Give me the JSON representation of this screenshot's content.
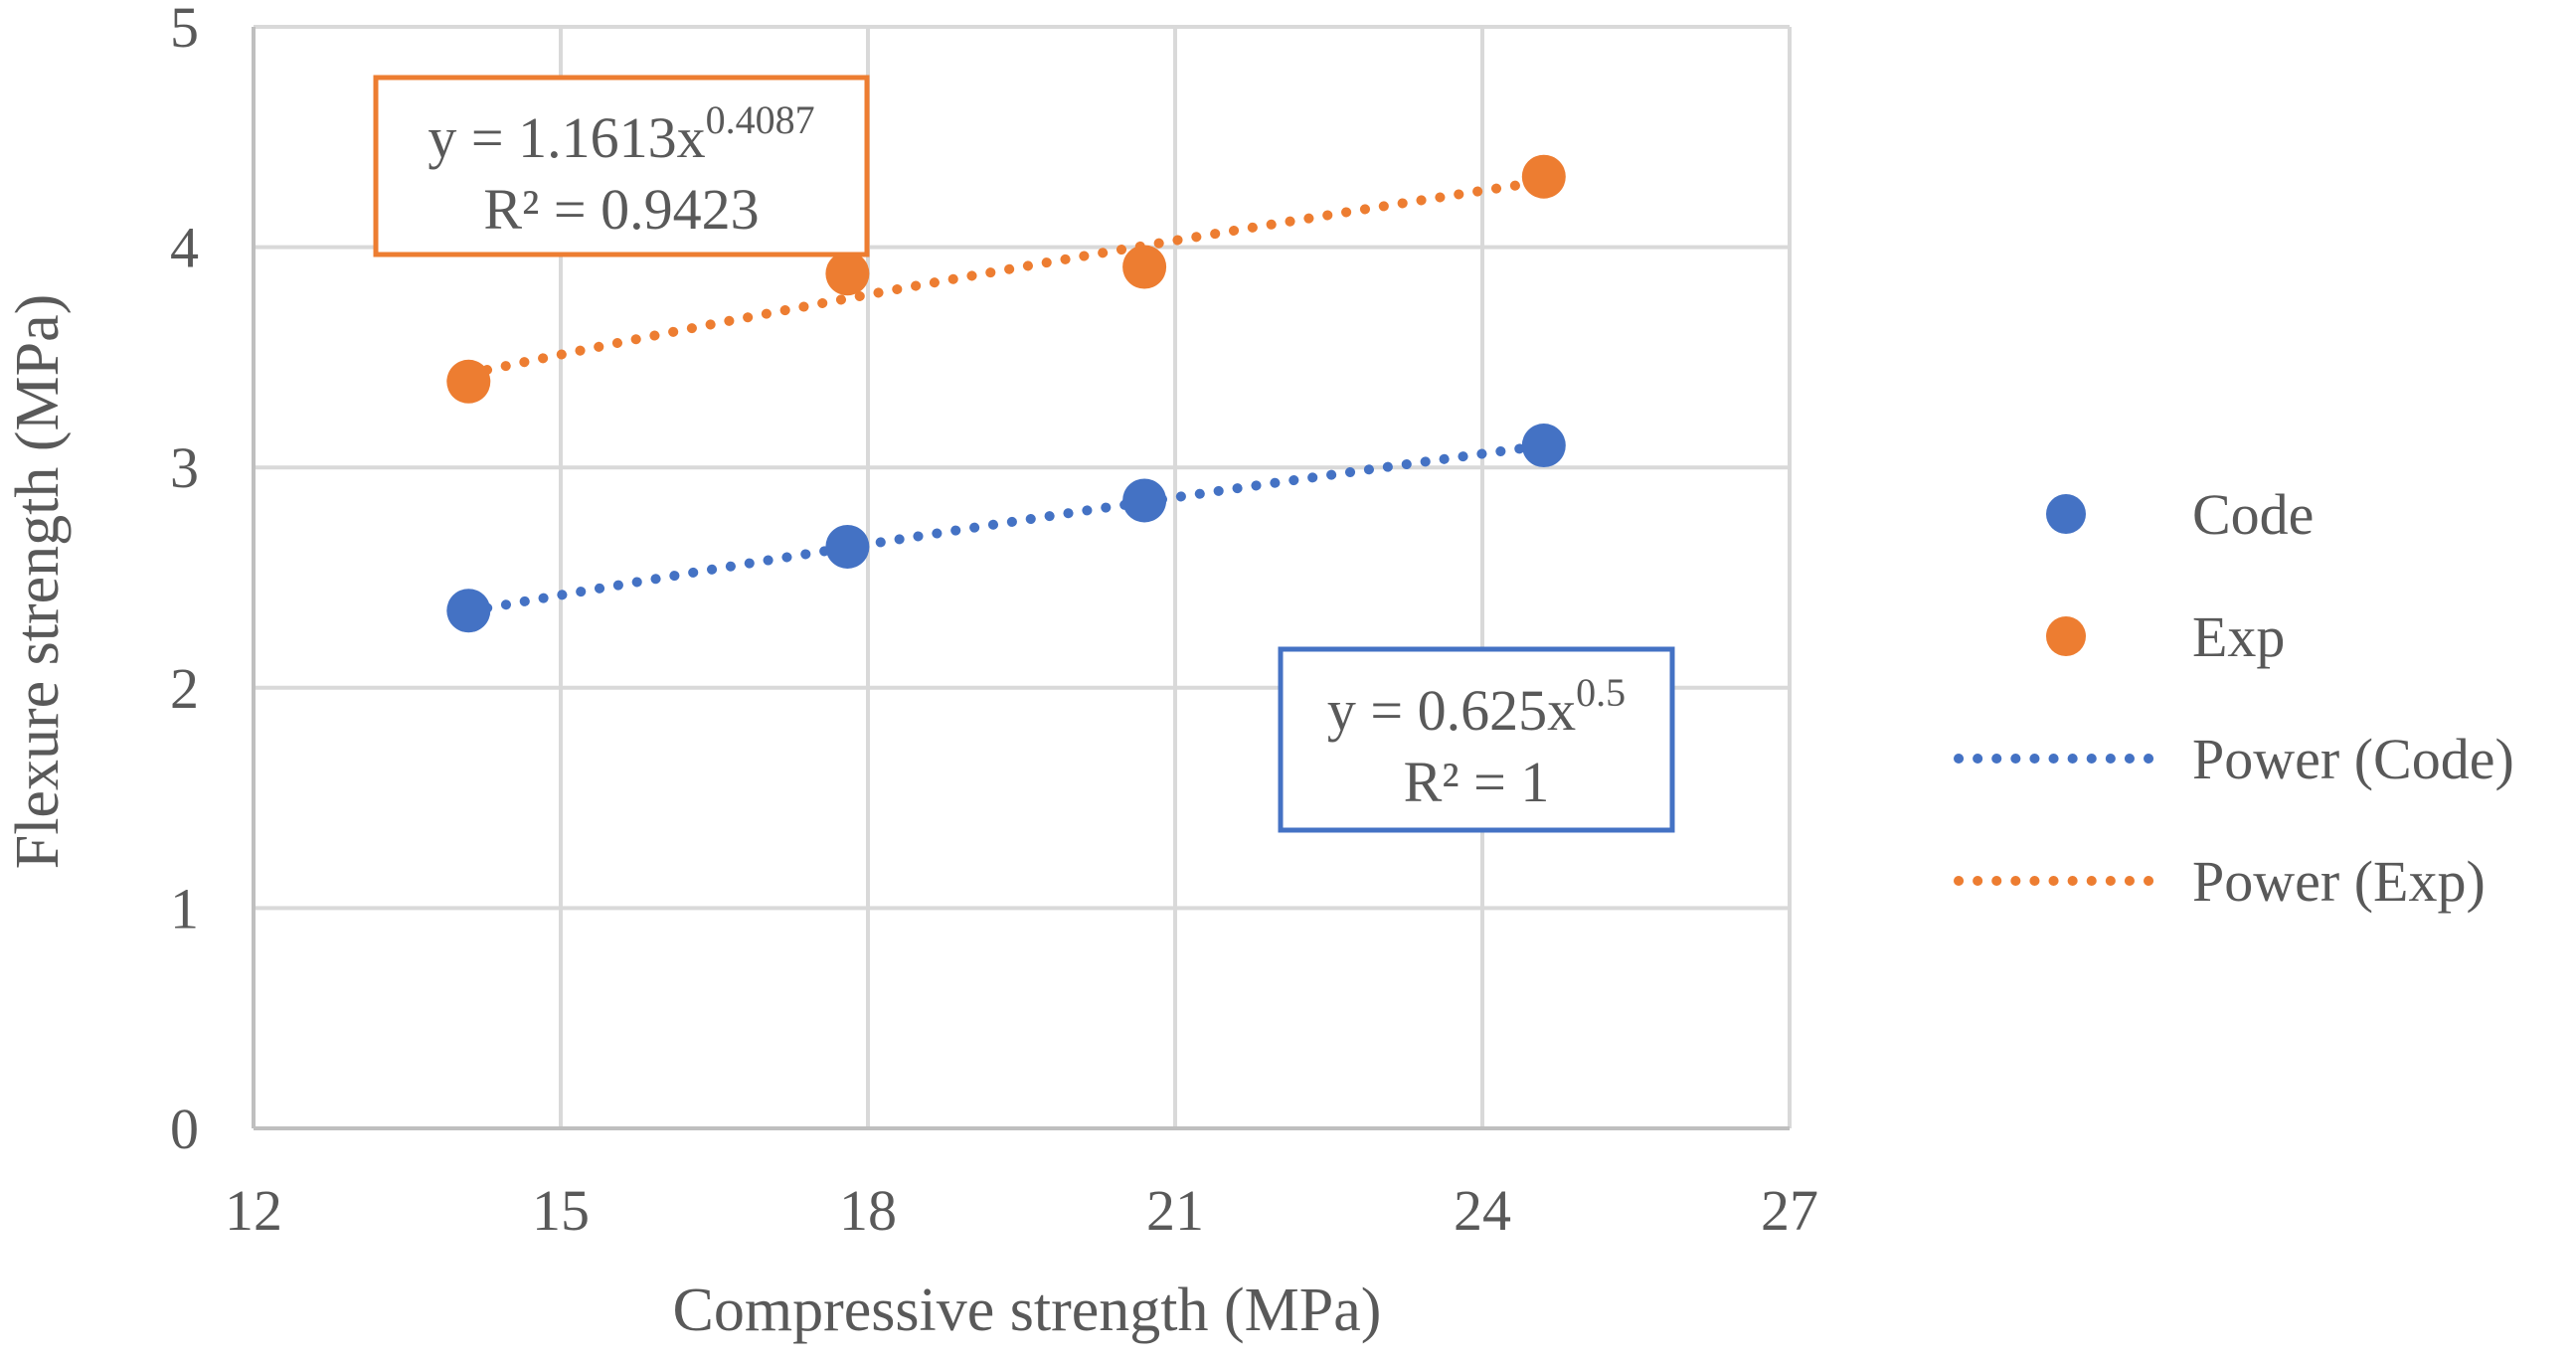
{
  "chart_data": {
    "type": "scatter",
    "xlabel": "Compressive strength (MPa)",
    "ylabel": "Flexure strength (MPa)",
    "xlim": [
      12,
      27
    ],
    "ylim": [
      0,
      5
    ],
    "xticks": [
      "12",
      "15",
      "18",
      "21",
      "24",
      "27"
    ],
    "yticks": [
      "0",
      "1",
      "2",
      "3",
      "4",
      "5"
    ],
    "grid": true,
    "legend_position": "right",
    "series": [
      {
        "name": "Code",
        "color": "#4472C4",
        "x": [
          14.1,
          17.8,
          20.7,
          24.6
        ],
        "y": [
          2.35,
          2.64,
          2.85,
          3.1
        ],
        "trendline": {
          "name": "Power (Code)",
          "coef": 0.625,
          "exp": 0.5,
          "equation_prefix": "y = 0.625x",
          "equation_exponent": "0.5",
          "r2": "R² = 1"
        }
      },
      {
        "name": "Exp",
        "color": "#ED7D31",
        "x": [
          14.1,
          17.8,
          20.7,
          24.6
        ],
        "y": [
          3.39,
          3.88,
          3.91,
          4.32
        ],
        "trendline": {
          "name": "Power (Exp)",
          "coef": 1.1613,
          "exp": 0.4087,
          "equation_prefix": "y = 1.1613x",
          "equation_exponent": "0.4087",
          "r2": "R² = 0.9423"
        }
      }
    ]
  }
}
